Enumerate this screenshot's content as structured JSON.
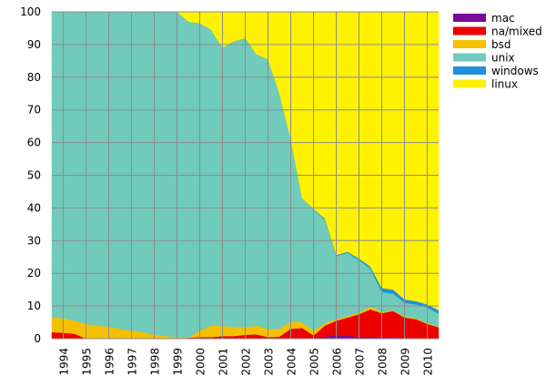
{
  "chart_data": {
    "type": "area",
    "stacked": true,
    "title": "",
    "xlabel": "",
    "ylabel": "",
    "xlim": [
      1993.5,
      2010.5
    ],
    "ylim": [
      0,
      100
    ],
    "grid": true,
    "legend_position": "top-right",
    "x_ticks": [
      "1994",
      "1995",
      "1996",
      "1997",
      "1998",
      "1999",
      "2000",
      "2001",
      "2002",
      "2003",
      "2004",
      "2005",
      "2006",
      "2007",
      "2008",
      "2009",
      "2010"
    ],
    "y_ticks": [
      "0",
      "10",
      "20",
      "30",
      "40",
      "50",
      "60",
      "70",
      "80",
      "90",
      "100"
    ],
    "x": [
      1993.5,
      1994,
      1994.5,
      1995,
      1995.5,
      1996,
      1996.5,
      1997,
      1997.5,
      1998,
      1998.5,
      1999,
      1999.5,
      2000,
      2000.5,
      2001,
      2001.5,
      2002,
      2002.5,
      2003,
      2003.5,
      2004,
      2004.5,
      2005,
      2005.5,
      2006,
      2006.5,
      2007,
      2007.5,
      2008,
      2008.5,
      2009,
      2009.5,
      2010,
      2010.5
    ],
    "series": [
      {
        "name": "mac",
        "color": "#7a0a9a",
        "values": [
          0,
          0,
          0,
          0,
          0,
          0,
          0,
          0,
          0,
          0,
          0,
          0,
          0,
          0,
          0,
          0,
          0,
          0,
          0,
          0,
          0,
          0,
          0,
          0.3,
          0.6,
          1,
          1,
          0.5,
          0.5,
          0.4,
          0.4,
          0.1,
          0,
          0,
          0
        ]
      },
      {
        "name": "na/mixed",
        "color": "#ee0000",
        "values": [
          2,
          1.8,
          1.5,
          0,
          0,
          0,
          0,
          0,
          0,
          0,
          0,
          0,
          0.3,
          0.5,
          0.5,
          0.8,
          0.8,
          1.2,
          1.3,
          0.5,
          0.6,
          3,
          3.3,
          0.7,
          3.4,
          4.5,
          5.5,
          7,
          8.5,
          7.4,
          8.1,
          6.4,
          6,
          4.5,
          3.5
        ]
      },
      {
        "name": "bsd",
        "color": "#f5c000",
        "values": [
          4.5,
          4.5,
          4,
          4.5,
          4,
          3.7,
          3,
          2.5,
          2,
          1.2,
          0.8,
          0.5,
          0,
          2,
          3.5,
          3.2,
          2.7,
          2.3,
          2.7,
          2.5,
          2.4,
          2.3,
          1.7,
          1.5,
          0.8,
          0.5,
          0.5,
          0.5,
          0.8,
          0.4,
          0.2,
          0.3,
          0.3,
          0.3,
          0.2
        ]
      },
      {
        "name": "unix",
        "color": "#70cbbb",
        "values": [
          93.5,
          93.7,
          94.5,
          95.5,
          96,
          96.3,
          97,
          97.5,
          98,
          98.8,
          99.2,
          99.5,
          96.7,
          94,
          90.5,
          85,
          87.5,
          88.5,
          83,
          82.5,
          72,
          55.7,
          38,
          37,
          31.7,
          19.3,
          19.3,
          16,
          11.7,
          6.1,
          5.1,
          4.2,
          4.2,
          4.7,
          4
        ]
      },
      {
        "name": "windows",
        "color": "#2090dd",
        "values": [
          0,
          0,
          0,
          0,
          0,
          0,
          0,
          0,
          0,
          0,
          0,
          0,
          0,
          0,
          0,
          0,
          0,
          0,
          0,
          0,
          0,
          0,
          0,
          0.2,
          0.3,
          0.3,
          0.3,
          0.5,
          0.6,
          1.2,
          1.2,
          1,
          1,
          1,
          1
        ]
      },
      {
        "name": "linux",
        "color": "#fff200",
        "values": [
          0,
          0,
          0,
          0,
          0,
          0,
          0,
          0,
          0,
          0,
          0,
          0,
          3,
          3.5,
          5.5,
          11,
          9,
          8,
          13,
          14.5,
          25,
          39,
          57,
          60.3,
          63.2,
          74.4,
          73.4,
          75.5,
          77.9,
          84.5,
          85,
          88,
          88.5,
          89.5,
          91.3
        ]
      }
    ]
  }
}
